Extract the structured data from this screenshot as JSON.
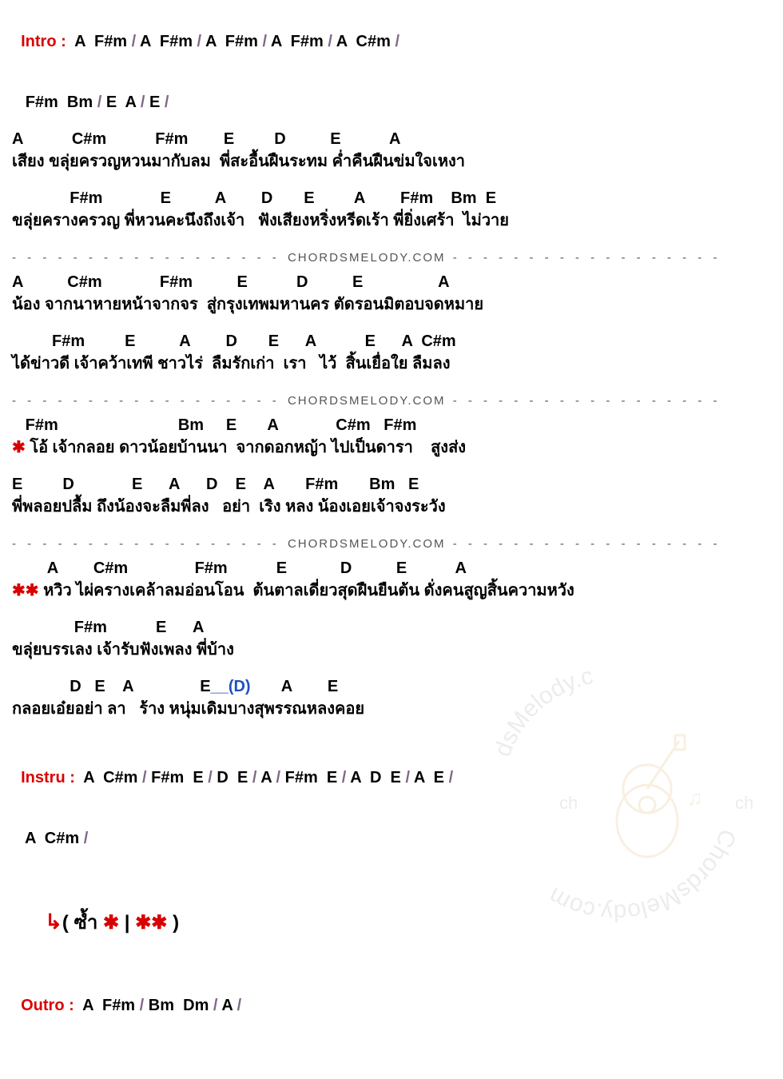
{
  "watermark_text": "ChordsMelody.com",
  "intro": {
    "label": "Intro :",
    "line1_parts": [
      {
        "t": "A  F#m",
        "sl": true
      },
      {
        "t": "A  F#m",
        "sl": true
      },
      {
        "t": "A  F#m",
        "sl": true
      },
      {
        "t": "A  F#m",
        "sl": true
      },
      {
        "t": "A  C#m",
        "sl": true
      }
    ],
    "line2_parts": [
      {
        "t": "F#m  Bm",
        "sl": true
      },
      {
        "t": "E  A",
        "sl": true
      },
      {
        "t": "E",
        "sl": true
      }
    ]
  },
  "verse1": {
    "chords1": "A           C#m           F#m        E         D          E           A",
    "lyrics1": "เสียง ขลุ่ยครวญหวนมากับลม  พี่สะอื้นฝืนระทม ค่ำคืนฝืนข่มใจเหงา",
    "chords2": "             F#m             E          A        D       E         A        F#m    Bm  E",
    "lyrics2": "ขลุ่ยครางครวญ พี่หวนคะนึงถึงเจ้า   ฟังเสียงหริ่งหรีดเร้า พี่ยิ่งเศร้า  ไม่วาย"
  },
  "divider": {
    "dashes": "- - - - - - - - - - - - - - - - - - ",
    "text": "CHORDSMELODY.COM",
    "dashes2": " - - - - - - - - - - - - - - - - - -"
  },
  "verse2": {
    "chords1": "A          C#m             F#m          E           D          E                 A",
    "lyrics1": "น้อง จากนาหายหน้าจากจร  สู่กรุงเทพมหานคร ตัดรอนมิตอบจดหมาย",
    "chords2": "         F#m         E          A        D       E      A           E      A  C#m",
    "lyrics2": "ได้ข่าวดี เจ้าคว้าเทพี ชาวไร่  ลืมรักเก่า  เรา   ไว้  สิ้นเยื่อใย ลืมลง"
  },
  "chorus1": {
    "chords1": "   F#m                           Bm     E       A             C#m   F#m",
    "lyrics1_pre": "✱ ",
    "lyrics1": "โอ้ เจ้ากลอย ดาวน้อยบ้านนา  จากดอกหญ้า ไปเป็นดารา    สูงส่ง",
    "chords2": "E         D             E      A      D    E    A       F#m       Bm   E",
    "lyrics2": "พี่พลอยปลื้ม ถึงน้องจะลืมพี่ลง   อย่า  เริง หลง น้องเอยเจ้าจงระวัง"
  },
  "chorus2": {
    "chords1": "        A        C#m               F#m           E            D          E           A",
    "lyrics1_pre": "✱✱ ",
    "lyrics1": "หวิว ไผ่ครางเคล้าลมอ่อนโอน  ต้นตาลเดี่ยวสุดฝืนยืนต้น ดั่งคนสูญสิ้นความหวัง",
    "chords2": "              F#m           E      A",
    "lyrics2": "ขลุ่ยบรรเลง เจ้ารับฟังเพลง พี่บ้าง",
    "chords3_a": "             D   E    A               E",
    "chords3_blue": "__(D)",
    "chords3_b": "       A        E",
    "lyrics3": "กลอยเอ๋ยอย่า ลา   ร้าง หนุ่มเดิมบางสุพรรณหลงคอย"
  },
  "instru": {
    "label": "Instru :",
    "line1_parts": [
      {
        "t": "A  C#m",
        "sl": true
      },
      {
        "t": "F#m  E",
        "sl": true
      },
      {
        "t": "D  E",
        "sl": true
      },
      {
        "t": "A",
        "sl": true
      },
      {
        "t": "F#m  E",
        "sl": true
      },
      {
        "t": "A  D  E",
        "sl": true
      },
      {
        "t": "A  E",
        "sl": true
      }
    ],
    "line2_parts": [
      {
        "t": "A  C#m",
        "sl": true
      }
    ]
  },
  "repeat": {
    "arrow": "↳",
    "text_a": "( ซ้ำ ",
    "star1": "✱",
    "pipe": " | ",
    "star2": "✱✱",
    "text_b": " )"
  },
  "outro": {
    "label": "Outro :",
    "parts": [
      {
        "t": "A  F#m",
        "sl": true
      },
      {
        "t": "Bm  Dm",
        "sl": true
      },
      {
        "t": "A",
        "sl": true
      }
    ]
  },
  "colors": {
    "red": "#d90000",
    "slash": "#806688",
    "blue": "#2050c0",
    "text": "#000000",
    "divider": "#555555",
    "watermark": "#b8b8b8"
  }
}
